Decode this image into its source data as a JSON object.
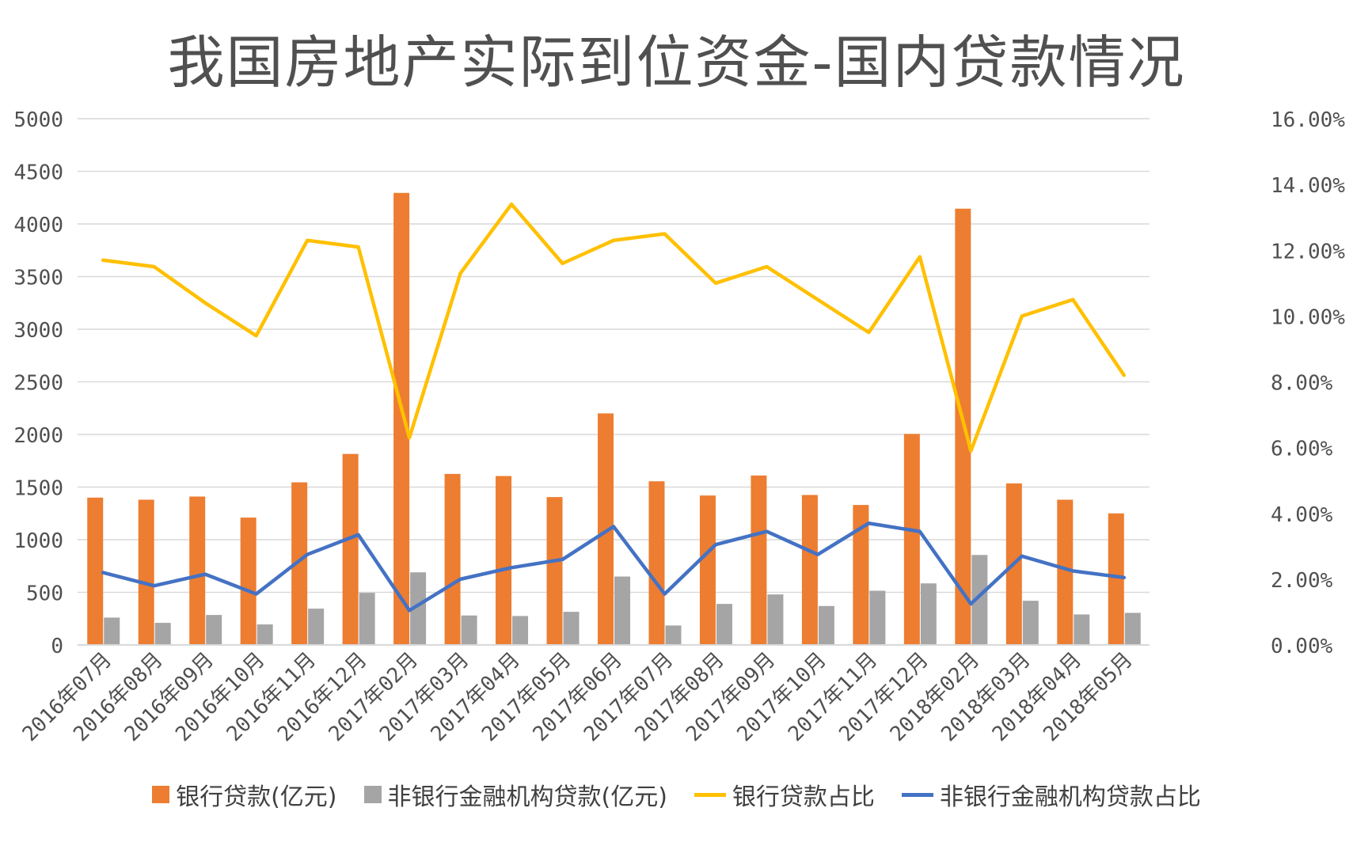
{
  "title": "我国房地产实际到位资金-国内贷款情况",
  "colors": {
    "bank_bar": "#ED7D31",
    "nonbank_bar": "#A5A5A5",
    "bank_ratio_line": "#FFC000",
    "nonbank_ratio_line": "#4472C4",
    "grid": "#D9D9D9",
    "text": "#505050"
  },
  "chart_data": {
    "type": "bar",
    "title": "我国房地产实际到位资金-国内贷款情况",
    "categories": [
      "2016年07月",
      "2016年08月",
      "2016年09月",
      "2016年10月",
      "2016年11月",
      "2016年12月",
      "2017年02月",
      "2017年03月",
      "2017年04月",
      "2017年05月",
      "2017年06月",
      "2017年07月",
      "2017年08月",
      "2017年09月",
      "2017年10月",
      "2017年11月",
      "2017年12月",
      "2018年02月",
      "2018年03月",
      "2018年04月",
      "2018年05月"
    ],
    "series": [
      {
        "name": "银行贷款(亿元)",
        "type": "bar",
        "axis": "left",
        "values": [
          1400,
          1380,
          1410,
          1210,
          1545,
          1815,
          4295,
          1625,
          1605,
          1405,
          2200,
          1555,
          1420,
          1610,
          1425,
          1330,
          2005,
          4145,
          1535,
          1380,
          1250
        ]
      },
      {
        "name": "非银行金融机构贷款(亿元)",
        "type": "bar",
        "axis": "left",
        "values": [
          260,
          210,
          285,
          195,
          345,
          495,
          690,
          280,
          275,
          315,
          650,
          185,
          390,
          480,
          370,
          515,
          585,
          855,
          420,
          290,
          305
        ]
      },
      {
        "name": "银行贷款占比",
        "type": "line",
        "axis": "right",
        "values": [
          0.117,
          0.115,
          0.104,
          0.094,
          0.123,
          0.121,
          0.063,
          0.113,
          0.134,
          0.116,
          0.123,
          0.125,
          0.11,
          0.115,
          0.105,
          0.095,
          0.118,
          0.059,
          0.1,
          0.105,
          0.082
        ]
      },
      {
        "name": "非银行金融机构贷款占比",
        "type": "line",
        "axis": "right",
        "values": [
          0.022,
          0.018,
          0.0215,
          0.0155,
          0.0275,
          0.0335,
          0.0105,
          0.02,
          0.0235,
          0.026,
          0.036,
          0.0155,
          0.0305,
          0.0345,
          0.0275,
          0.037,
          0.0345,
          0.0125,
          0.027,
          0.0225,
          0.0205
        ]
      }
    ],
    "y_left": {
      "min": 0,
      "max": 5000,
      "ticks": [
        "0",
        "500",
        "1000",
        "1500",
        "2000",
        "2500",
        "3000",
        "3500",
        "4000",
        "4500",
        "5000"
      ]
    },
    "y_right": {
      "min": 0,
      "max": 0.16,
      "ticks": [
        "0.00%",
        "2.00%",
        "4.00%",
        "6.00%",
        "8.00%",
        "10.00%",
        "12.00%",
        "14.00%",
        "16.00%"
      ]
    },
    "grid": true,
    "legend_position": "bottom"
  }
}
